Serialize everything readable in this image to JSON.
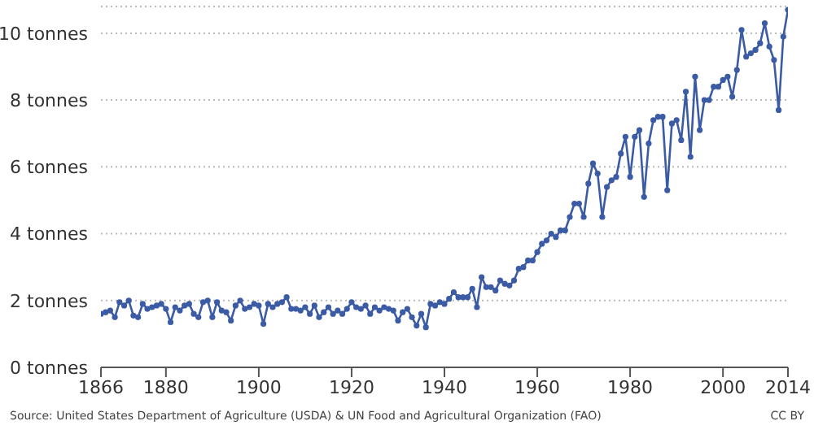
{
  "chart_data": {
    "type": "line",
    "x": [
      1866,
      1867,
      1868,
      1869,
      1870,
      1871,
      1872,
      1873,
      1874,
      1875,
      1876,
      1877,
      1878,
      1879,
      1880,
      1881,
      1882,
      1883,
      1884,
      1885,
      1886,
      1887,
      1888,
      1889,
      1890,
      1891,
      1892,
      1893,
      1894,
      1895,
      1896,
      1897,
      1898,
      1899,
      1900,
      1901,
      1902,
      1903,
      1904,
      1905,
      1906,
      1907,
      1908,
      1909,
      1910,
      1911,
      1912,
      1913,
      1914,
      1915,
      1916,
      1917,
      1918,
      1919,
      1920,
      1921,
      1922,
      1923,
      1924,
      1925,
      1926,
      1927,
      1928,
      1929,
      1930,
      1931,
      1932,
      1933,
      1934,
      1935,
      1936,
      1937,
      1938,
      1939,
      1940,
      1941,
      1942,
      1943,
      1944,
      1945,
      1946,
      1947,
      1948,
      1949,
      1950,
      1951,
      1952,
      1953,
      1954,
      1955,
      1956,
      1957,
      1958,
      1959,
      1960,
      1961,
      1962,
      1963,
      1964,
      1965,
      1966,
      1967,
      1968,
      1969,
      1970,
      1971,
      1972,
      1973,
      1974,
      1975,
      1976,
      1977,
      1978,
      1979,
      1980,
      1981,
      1982,
      1983,
      1984,
      1985,
      1986,
      1987,
      1988,
      1989,
      1990,
      1991,
      1992,
      1993,
      1994,
      1995,
      1996,
      1997,
      1998,
      1999,
      2000,
      2001,
      2002,
      2003,
      2004,
      2005,
      2006,
      2007,
      2008,
      2009,
      2010,
      2011,
      2012,
      2013,
      2014
    ],
    "series": [
      {
        "color": "#3b5ba5",
        "values": [
          1.6,
          1.65,
          1.7,
          1.5,
          1.95,
          1.85,
          2.0,
          1.55,
          1.5,
          1.9,
          1.75,
          1.8,
          1.85,
          1.9,
          1.75,
          1.35,
          1.8,
          1.7,
          1.85,
          1.9,
          1.6,
          1.5,
          1.95,
          2.0,
          1.5,
          1.95,
          1.7,
          1.65,
          1.4,
          1.85,
          2.0,
          1.75,
          1.8,
          1.9,
          1.85,
          1.3,
          1.9,
          1.8,
          1.9,
          1.95,
          2.1,
          1.75,
          1.75,
          1.7,
          1.8,
          1.6,
          1.85,
          1.5,
          1.65,
          1.8,
          1.6,
          1.7,
          1.6,
          1.75,
          1.95,
          1.8,
          1.75,
          1.85,
          1.6,
          1.8,
          1.7,
          1.8,
          1.75,
          1.7,
          1.4,
          1.65,
          1.75,
          1.5,
          1.25,
          1.6,
          1.2,
          1.9,
          1.85,
          1.95,
          1.9,
          2.05,
          2.25,
          2.1,
          2.1,
          2.1,
          2.35,
          1.8,
          2.7,
          2.4,
          2.4,
          2.3,
          2.6,
          2.5,
          2.45,
          2.6,
          2.95,
          3.0,
          3.2,
          3.2,
          3.45,
          3.7,
          3.8,
          4.0,
          3.9,
          4.1,
          4.1,
          4.5,
          4.9,
          4.9,
          4.5,
          5.5,
          6.1,
          5.8,
          4.5,
          5.4,
          5.6,
          5.7,
          6.4,
          6.9,
          5.7,
          6.9,
          7.1,
          5.1,
          6.7,
          7.4,
          7.5,
          7.5,
          5.3,
          7.3,
          7.4,
          6.8,
          8.25,
          6.3,
          8.7,
          7.1,
          8.0,
          8.0,
          8.4,
          8.4,
          8.6,
          8.7,
          8.1,
          8.9,
          10.1,
          9.3,
          9.4,
          9.5,
          9.7,
          10.3,
          9.6,
          9.2,
          7.7,
          9.9,
          10.7
        ]
      }
    ],
    "xlim": [
      1866,
      2014
    ],
    "xticks": [
      1866,
      1880,
      1900,
      1920,
      1940,
      1960,
      1980,
      2000,
      2014
    ],
    "ylim": [
      0,
      10.8
    ],
    "yticks": [
      {
        "value": 0,
        "label": "0 tonnes"
      },
      {
        "value": 2,
        "label": "2 tonnes"
      },
      {
        "value": 4,
        "label": "4 tonnes"
      },
      {
        "value": 6,
        "label": "6 tonnes"
      },
      {
        "value": 8,
        "label": "8 tonnes"
      },
      {
        "value": 10,
        "label": "10 tonnes"
      }
    ],
    "grid": "y",
    "marker": "circle",
    "line_style": "solid",
    "annotations": [
      "Source: United States Department of Agriculture (USDA) & UN Food and Agricultural Organization (FAO)",
      "CC BY"
    ]
  }
}
